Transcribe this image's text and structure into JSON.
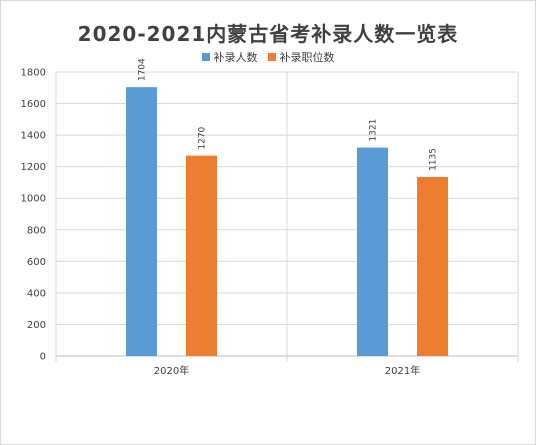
{
  "chart_data": {
    "type": "bar",
    "title": "2020-2021内蒙古省考补录人数一览表",
    "categories": [
      "2020年",
      "2021年"
    ],
    "series": [
      {
        "name": "补录人数",
        "values": [
          1704,
          1321
        ],
        "color": "#5b9bd5"
      },
      {
        "name": "补录职位数",
        "values": [
          1270,
          1135
        ],
        "color": "#ed7d31"
      }
    ],
    "ylim": [
      0,
      1800
    ],
    "yticks": [
      0,
      200,
      400,
      600,
      800,
      1000,
      1200,
      1400,
      1600,
      1800
    ],
    "grid": true,
    "legend": "top",
    "data_labels": true
  }
}
